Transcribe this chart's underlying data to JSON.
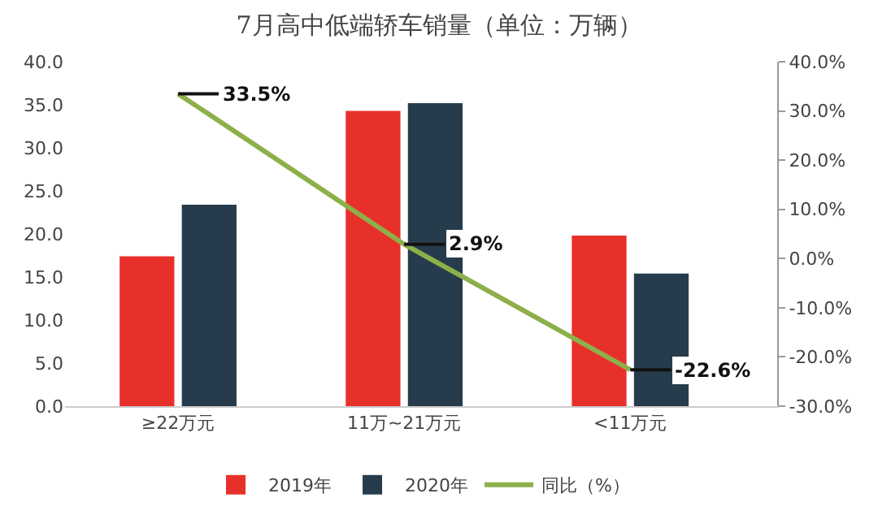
{
  "chart_data": {
    "type": "bar",
    "title": "7月高中低端轿车销量（单位：万辆）",
    "categories": [
      "≥22万元",
      "11万~21万元",
      "<11万元"
    ],
    "series": [
      {
        "name": "2019年",
        "color": "#e8302a",
        "values": [
          17.4,
          34.3,
          19.8
        ]
      },
      {
        "name": "2020年",
        "color": "#263c4c",
        "values": [
          23.4,
          35.2,
          15.4
        ]
      },
      {
        "name": "同比（%）",
        "type": "line",
        "axis": "y2",
        "color": "#8db04a",
        "values": [
          33.5,
          2.9,
          -22.6
        ],
        "value_labels": [
          "33.5%",
          "2.9%",
          "-22.6%"
        ]
      }
    ],
    "ylim": [
      0,
      40
    ],
    "yticks": [
      {
        "value": 0,
        "label": "0.0"
      },
      {
        "value": 5,
        "label": "5.0"
      },
      {
        "value": 10,
        "label": "10.0"
      },
      {
        "value": 15,
        "label": "15.0"
      },
      {
        "value": 20,
        "label": "20.0"
      },
      {
        "value": 25,
        "label": "25.0"
      },
      {
        "value": 30,
        "label": "30.0"
      },
      {
        "value": 35,
        "label": "35.0"
      },
      {
        "value": 40,
        "label": "40.0"
      }
    ],
    "y2lim": [
      -30,
      40
    ],
    "y2ticks": [
      {
        "value": -30,
        "label": "-30.0%"
      },
      {
        "value": -20,
        "label": "-20.0%"
      },
      {
        "value": -10,
        "label": "-10.0%"
      },
      {
        "value": 0,
        "label": "0.0%"
      },
      {
        "value": 10,
        "label": "10.0%"
      },
      {
        "value": 20,
        "label": "20.0%"
      },
      {
        "value": 30,
        "label": "30.0%"
      },
      {
        "value": 40,
        "label": "40.0%"
      }
    ],
    "legend": "bottom",
    "grid": false,
    "marker": "none",
    "line_style": "solid"
  }
}
